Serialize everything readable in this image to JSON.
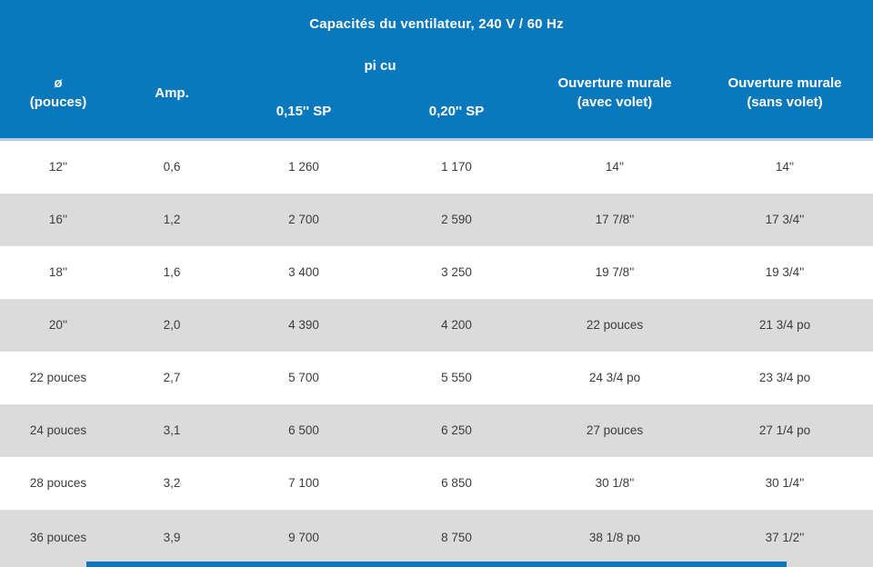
{
  "table": {
    "title": "Capacités du ventilateur, 240 V / 60 Hz",
    "header": {
      "diameter_line1": "ø",
      "diameter_line2": "(pouces)",
      "amp": "Amp.",
      "picu_group": "pi cu",
      "sp_015": "0,15'' SP",
      "sp_020": "0,20'' SP",
      "wall_with_line1": "Ouverture murale",
      "wall_with_line2": "(avec volet)",
      "wall_without_line1": "Ouverture murale",
      "wall_without_line2": "(sans volet)"
    },
    "rows": [
      [
        "12''",
        "0,6",
        "1 260",
        "1 170",
        "14''",
        "14''"
      ],
      [
        "16''",
        "1,2",
        "2 700",
        "2 590",
        "17 7/8''",
        "17 3/4''"
      ],
      [
        "18''",
        "1,6",
        "3 400",
        "3 250",
        "19 7/8''",
        "19 3/4''"
      ],
      [
        "20''",
        "2,0",
        "4 390",
        "4 200",
        "22 pouces",
        "21 3/4 po"
      ],
      [
        "22 pouces",
        "2,7",
        "5 700",
        "5 550",
        "24 3/4 po",
        "23 3/4 po"
      ],
      [
        "24 pouces",
        "3,1",
        "6 500",
        "6 250",
        "27 pouces",
        "27 1/4 po"
      ],
      [
        "28 pouces",
        "3,2",
        "7 100",
        "6 850",
        "30 1/8''",
        "30 1/4''"
      ],
      [
        "36 pouces",
        "3,9",
        "9 700",
        "8 750",
        "38 1/8 po",
        "37 1/2''"
      ]
    ]
  },
  "colors": {
    "header_blue": "#0a78bd",
    "header_separator": "#b3cde6",
    "row_alt_gray": "#dbdbdb",
    "row_white": "#ffffff",
    "body_text": "#3c3c3c",
    "header_text": "#ffffff"
  }
}
